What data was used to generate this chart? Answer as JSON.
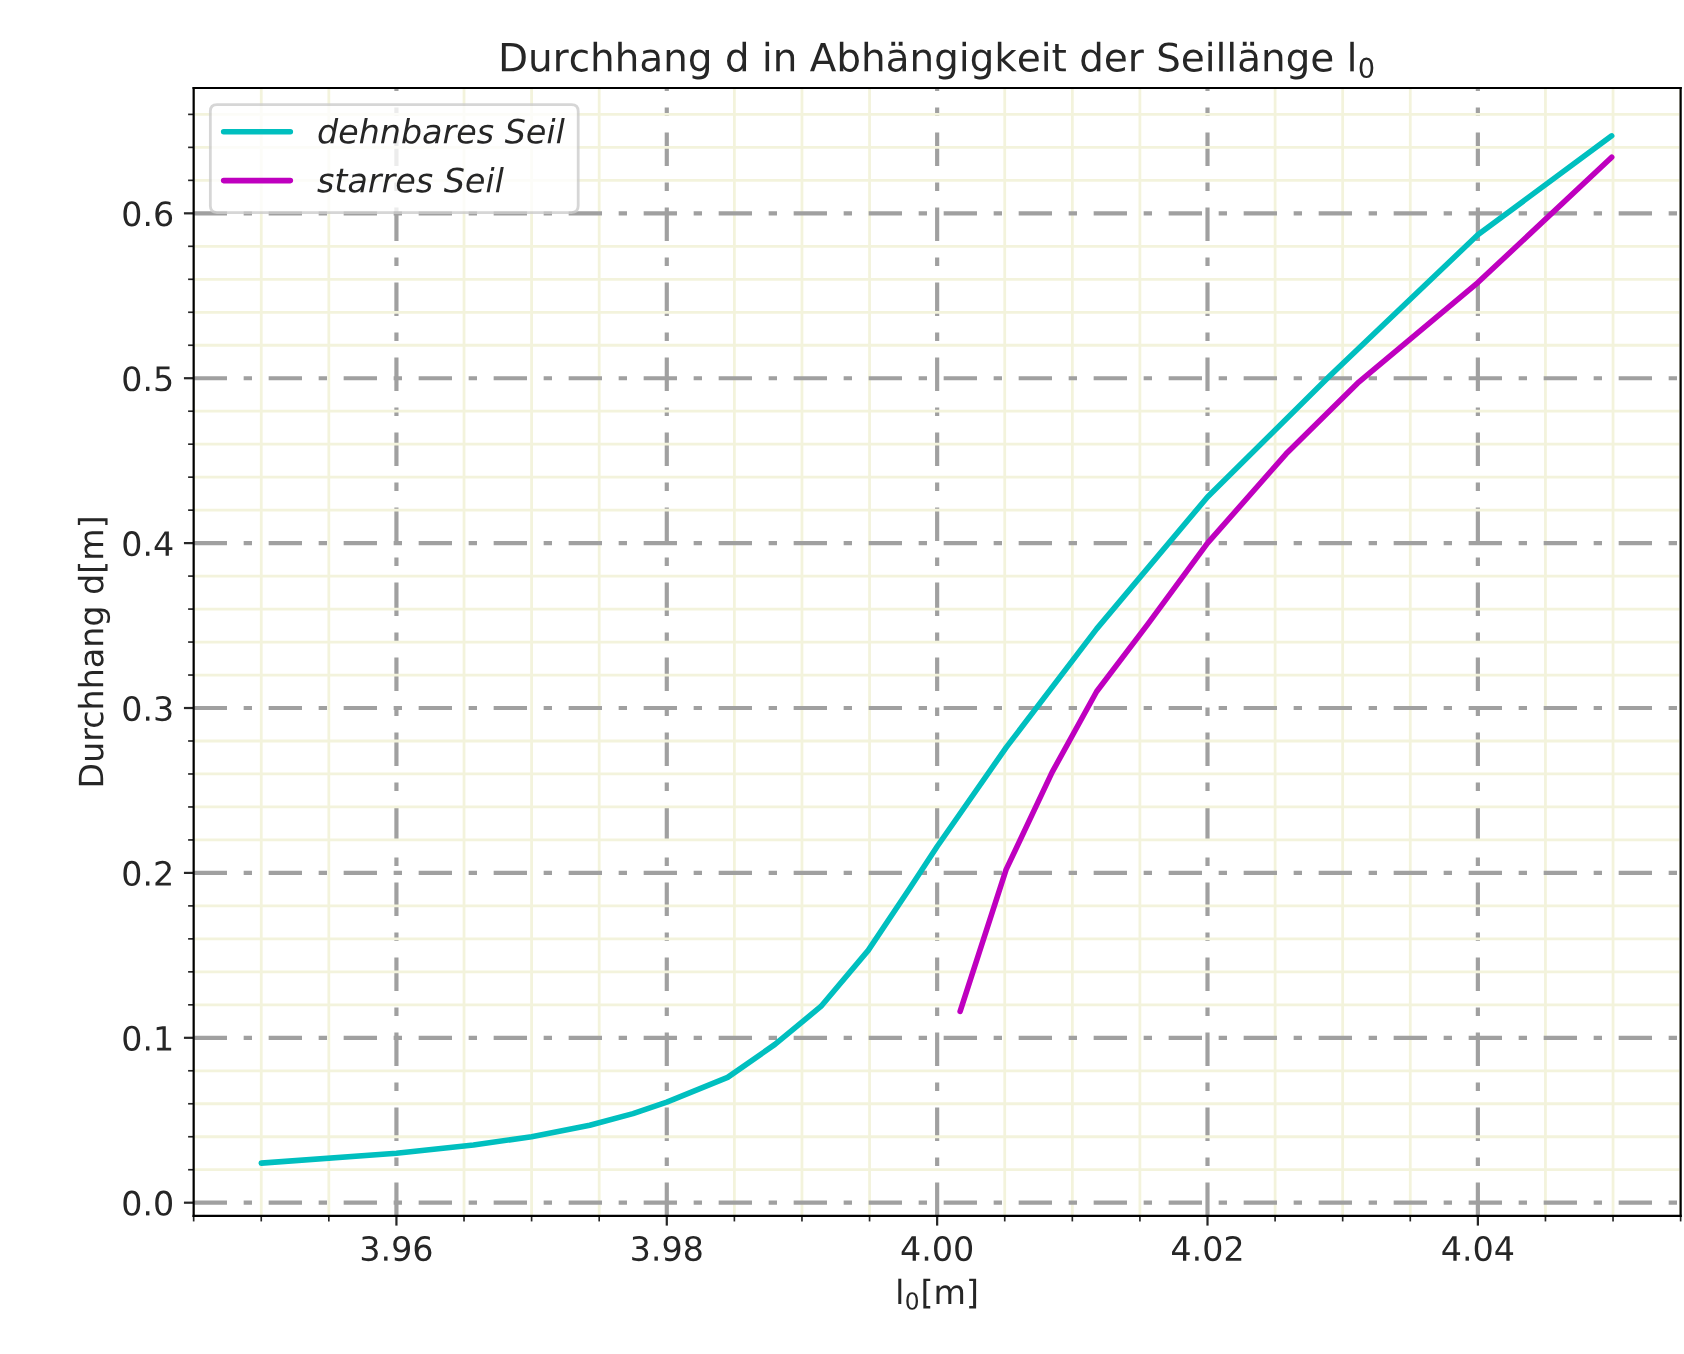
{
  "chart_data": {
    "type": "line",
    "title": "Durchhang d in Abhängigkeit der Seillänge l$_{0}$",
    "xlabel": "l$_{0}$[m]",
    "ylabel": "Durchhang d[m]",
    "series": [
      {
        "name": "dehnbares Seil",
        "color": "#00bfbf",
        "x": [
          3.95,
          3.96,
          3.9657,
          3.97,
          3.9743,
          3.9775,
          3.98,
          3.9845,
          3.988,
          3.9914,
          3.9949,
          3.998,
          4.0,
          4.0051,
          4.0118,
          4.02,
          4.029,
          4.04,
          4.0499
        ],
        "values": [
          0.024,
          0.03,
          0.035,
          0.04,
          0.047,
          0.054,
          0.061,
          0.076,
          0.096,
          0.119,
          0.153,
          0.191,
          0.216,
          0.276,
          0.348,
          0.428,
          0.501,
          0.587,
          0.647
        ]
      },
      {
        "name": "starres Seil",
        "color": "#bf00bf",
        "x": [
          4.0017,
          4.0051,
          4.0085,
          4.0118,
          4.0156,
          4.02,
          4.0258,
          4.0311,
          4.04,
          4.0499
        ],
        "values": [
          0.116,
          0.202,
          0.261,
          0.31,
          0.351,
          0.4,
          0.454,
          0.497,
          0.558,
          0.634
        ]
      }
    ],
    "xlim": [
      3.945,
      4.055
    ],
    "xticks": [
      {
        "value": 3.96,
        "label": "3.96"
      },
      {
        "value": 3.98,
        "label": "3.98"
      },
      {
        "value": 4.0,
        "label": "4.00"
      },
      {
        "value": 4.02,
        "label": "4.02"
      },
      {
        "value": 4.04,
        "label": "4.04"
      }
    ],
    "ylim": [
      -0.008,
      0.676
    ],
    "yticks": [
      {
        "value": 0.0,
        "label": "0.0"
      },
      {
        "value": 0.1,
        "label": "0.1"
      },
      {
        "value": 0.2,
        "label": "0.2"
      },
      {
        "value": 0.3,
        "label": "0.3"
      },
      {
        "value": 0.4,
        "label": "0.4"
      },
      {
        "value": 0.5,
        "label": "0.5"
      },
      {
        "value": 0.6,
        "label": "0.6"
      }
    ],
    "grid": true,
    "legend": "top left",
    "marker": "none",
    "line_style": "solid"
  }
}
